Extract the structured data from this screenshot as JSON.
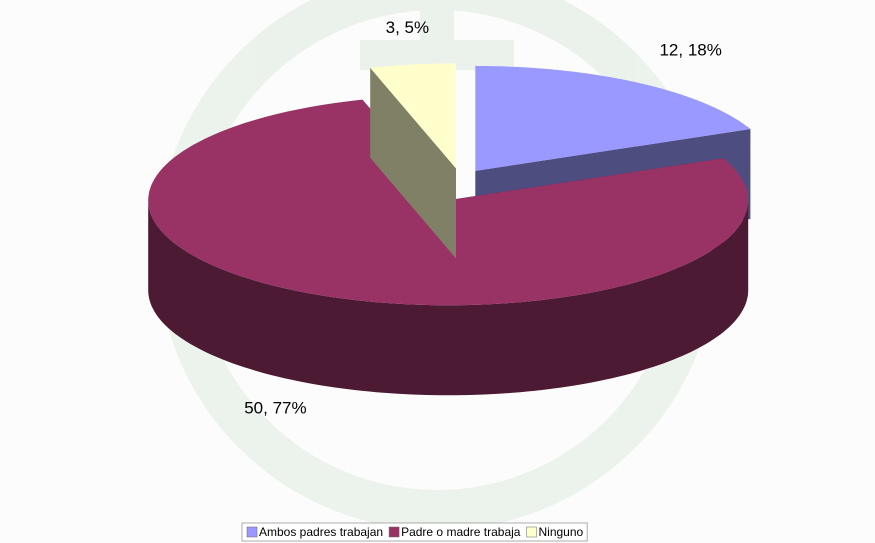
{
  "chart_data": {
    "type": "pie",
    "categories": [
      "Ambos padres trabajan",
      "Padre o madre trabaja",
      "Ninguno"
    ],
    "values": [
      12,
      50,
      3
    ],
    "value_labels": [
      "12, 18%",
      "50, 77%",
      "3, 5%"
    ],
    "colors": [
      "#9999ff",
      "#993366",
      "#ffffcc"
    ],
    "side_colors": [
      "#4d4d80",
      "#4d1a33",
      "#808066"
    ],
    "legend": "bottom"
  }
}
